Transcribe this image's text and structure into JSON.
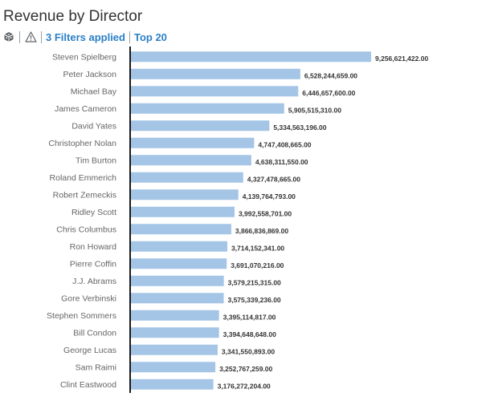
{
  "title": "Revenue by Director",
  "toolbar": {
    "filters_label": "3 Filters applied",
    "top_label": "Top 20",
    "icons": [
      "cube-icon",
      "warning-icon"
    ]
  },
  "colors": {
    "bar": "#a4c5e6",
    "axis": "#1a1a1a",
    "link": "#2b7fc7"
  },
  "chart_data": {
    "type": "bar",
    "orientation": "horizontal",
    "title": "Revenue by Director",
    "xlabel": "",
    "ylabel": "",
    "grid": false,
    "xlim": [
      0,
      9256621422
    ],
    "categories": [
      "Steven Spielberg",
      "Peter Jackson",
      "Michael Bay",
      "James Cameron",
      "David Yates",
      "Christopher Nolan",
      "Tim Burton",
      "Roland Emmerich",
      "Robert Zemeckis",
      "Ridley Scott",
      "Chris Columbus",
      "Ron Howard",
      "Pierre Coffin",
      "J.J. Abrams",
      "Gore Verbinski",
      "Stephen Sommers",
      "Bill Condon",
      "George Lucas",
      "Sam Raimi",
      "Clint Eastwood"
    ],
    "values": [
      9256621422,
      6528244659,
      6446657600,
      5905515310,
      5334563196,
      4747408665,
      4638311550,
      4327478665,
      4139764793,
      3992558701,
      3866836869,
      3714152341,
      3691070216,
      3579215315,
      3575339236,
      3395114817,
      3394648648,
      3341550893,
      3252767259,
      3176272204
    ],
    "value_labels": [
      "9,256,621,422.00",
      "6,528,244,659.00",
      "6,446,657,600.00",
      "5,905,515,310.00",
      "5,334,563,196.00",
      "4,747,408,665.00",
      "4,638,311,550.00",
      "4,327,478,665.00",
      "4,139,764,793.00",
      "3,992,558,701.00",
      "3,866,836,869.00",
      "3,714,152,341.00",
      "3,691,070,216.00",
      "3,579,215,315.00",
      "3,575,339,236.00",
      "3,395,114,817.00",
      "3,394,648,648.00",
      "3,341,550,893.00",
      "3,252,767,259.00",
      "3,176,272,204.00"
    ]
  }
}
